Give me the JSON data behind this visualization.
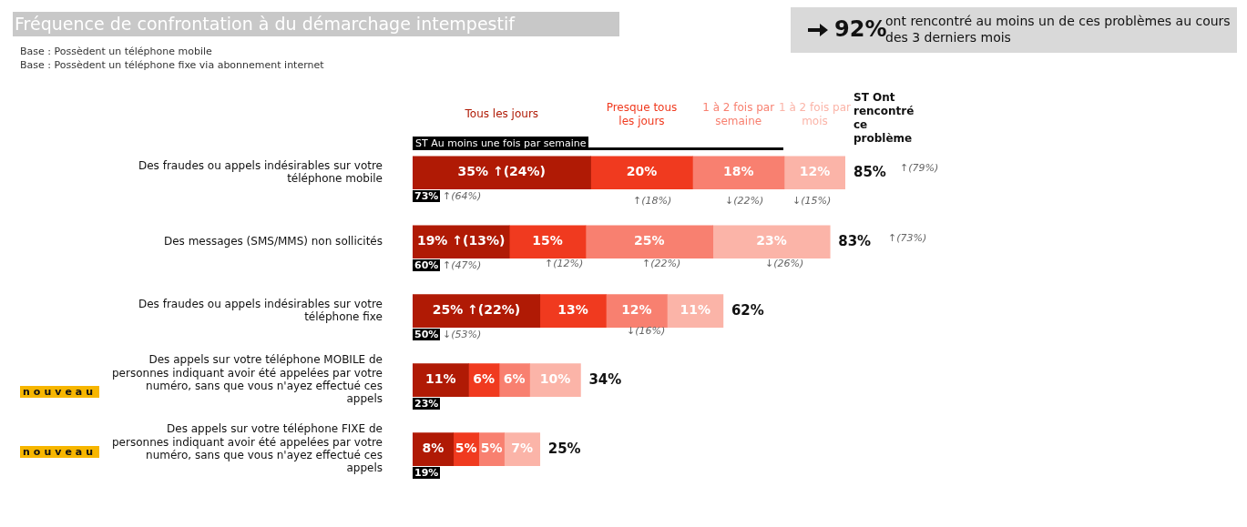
{
  "chart_data": {
    "type": "bar",
    "orientation": "horizontal",
    "stacked": true,
    "title": "Fréquence de confrontation à du démarchage intempestif",
    "categories": [
      "Des fraudes ou appels indésirables sur votre téléphone mobile",
      "Des messages (SMS/MMS) non sollicités",
      "Des fraudes ou appels indésirables sur votre téléphone fixe",
      "Des appels sur votre téléphone MOBILE de personnes indiquant avoir été appelées par votre numéro, sans que vous n'ayez effectué ces appels",
      "Des appels sur votre téléphone FIXE de personnes indiquant avoir été appelées par votre numéro, sans que vous n'ayez effectué ces appels"
    ],
    "series": [
      {
        "name": "Tous les jours",
        "color": "#b01a05",
        "values": [
          35,
          19,
          25,
          11,
          8
        ],
        "value_labels": [
          "35% ↑(24%)",
          "19% ↑(13%)",
          "25% ↑(22%)",
          "11%",
          "8%"
        ]
      },
      {
        "name": "Presque tous les jours",
        "color": "#f03a1f",
        "values": [
          20,
          15,
          13,
          6,
          5
        ],
        "value_labels": [
          "20%",
          "15%",
          "13%",
          "6%",
          "5%"
        ]
      },
      {
        "name": "1 à 2 fois par semaine",
        "color": "#f88070",
        "values": [
          18,
          25,
          12,
          6,
          5
        ],
        "value_labels": [
          "18%",
          "25%",
          "12%",
          "6%",
          "5%"
        ]
      },
      {
        "name": "1 à 2 fois par mois",
        "color": "#fbb4a8",
        "values": [
          12,
          23,
          11,
          10,
          7
        ],
        "value_labels": [
          "12%",
          "23%",
          "11%",
          "10%",
          "7%"
        ]
      }
    ],
    "totals": [
      "85%",
      "83%",
      "62%",
      "34%",
      "25%"
    ],
    "tick_labels": "y",
    "grid": false,
    "legend": "top",
    "annotations": [
      "Base : Possèdent un téléphone mobile",
      "Base : Possèdent un téléphone fixe via abonnement internet",
      "92%",
      "ont rencontré au moins un de ces problèmes au cours des 3 derniers mois",
      "ST Au moins une fois par semaine",
      "ST Ont rencontré ce problème",
      "nouveau",
      "nouveau",
      "73%",
      "↑(64%)",
      "↑(18%)",
      "↓(22%)",
      "↓(15%)",
      "↑(79%)",
      "60%",
      "↑(47%)",
      "↑(12%)",
      "↑(22%)",
      "↓(26%)",
      "↑(73%)",
      "50%",
      "↓(53%)",
      "↓(16%)",
      "23%",
      "19%"
    ]
  }
}
